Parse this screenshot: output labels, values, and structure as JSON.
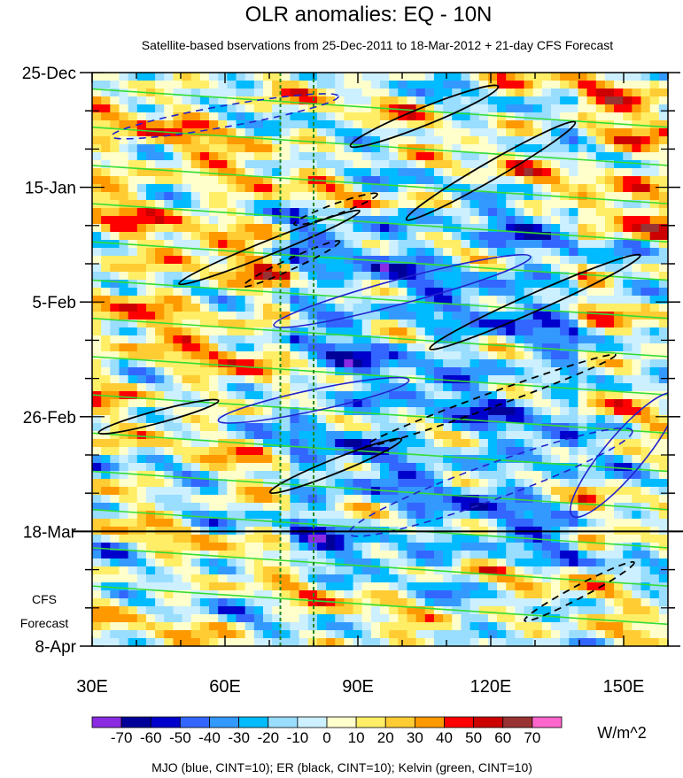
{
  "chart_data": {
    "type": "heatmap",
    "title": "OLR anomalies: EQ - 10N",
    "subtitle": "Satellite-based bservations from 25-Dec-2011 to 18-Mar-2012 + 21-day CFS Forecast",
    "x_ticks": [
      {
        "label": "30E",
        "lon": 30
      },
      {
        "label": "60E",
        "lon": 60
      },
      {
        "label": "90E",
        "lon": 90
      },
      {
        "label": "120E",
        "lon": 120
      },
      {
        "label": "150E",
        "lon": 150
      }
    ],
    "xlim": [
      30,
      160
    ],
    "y_ticks": [
      {
        "label": "25-Dec",
        "day": 0
      },
      {
        "label": "15-Jan",
        "day": 21
      },
      {
        "label": "5-Feb",
        "day": 42
      },
      {
        "label": "26-Feb",
        "day": 63
      },
      {
        "label": "18-Mar",
        "day": 84
      },
      {
        "label": "8-Apr",
        "day": 105
      }
    ],
    "ylim_days": [
      0,
      105
    ],
    "forecast_start_day": 84,
    "forecast_label_line1": "CFS",
    "forecast_label_line2": "Forecast",
    "reference_lines_lon": [
      72.5,
      80
    ],
    "colorbar": {
      "levels": [
        "-70",
        "-60",
        "-50",
        "-40",
        "-30",
        "-20",
        "-10",
        "0",
        "10",
        "20",
        "30",
        "40",
        "50",
        "60",
        "70"
      ],
      "colors": [
        "#8a2be2",
        "#000099",
        "#0000cc",
        "#3366ff",
        "#3399ff",
        "#00bbff",
        "#99ddff",
        "#ccf0ff",
        "#ffffcc",
        "#ffee66",
        "#ffcc33",
        "#ff9900",
        "#ff0000",
        "#cc0000",
        "#993333",
        "#ff66cc"
      ],
      "units": "W/m^2"
    },
    "footnote": "MJO (blue, CINT=10); ER (black, CINT=10); Kelvin (green, CINT=10)",
    "colors": {
      "mjo": "#2222cc",
      "er": "#000000",
      "kelvin": "#33dd33",
      "ref_line": "#228822"
    }
  }
}
